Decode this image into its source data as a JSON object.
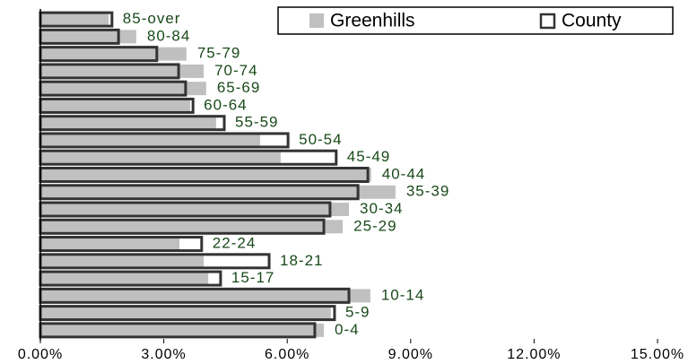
{
  "chart_data": {
    "type": "bar",
    "orientation": "horizontal",
    "categories": [
      "85-over",
      "80-84",
      "75-79",
      "70-74",
      "65-69",
      "60-64",
      "55-59",
      "50-54",
      "45-49",
      "40-44",
      "35-39",
      "30-34",
      "25-29",
      "22-24",
      "18-21",
      "15-17",
      "10-14",
      "5-9",
      "0-4"
    ],
    "series": [
      {
        "name": "Greenhills",
        "color": "#c0c0c0",
        "values": [
          1.66,
          2.33,
          3.55,
          3.97,
          4.03,
          3.64,
          4.27,
          5.34,
          5.84,
          8.04,
          8.63,
          7.5,
          7.35,
          3.38,
          3.97,
          4.08,
          8.02,
          7.06,
          6.89
        ]
      },
      {
        "name": "County",
        "color": "#333333",
        "values": [
          1.74,
          1.9,
          2.83,
          3.36,
          3.53,
          3.71,
          4.47,
          6.02,
          7.19,
          7.96,
          7.72,
          7.04,
          6.89,
          3.92,
          5.56,
          4.38,
          7.5,
          7.15,
          6.67
        ]
      }
    ],
    "xlim": [
      0,
      15
    ],
    "xticks": [
      {
        "value": 0,
        "label": "0.00%"
      },
      {
        "value": 3,
        "label": "3.00%"
      },
      {
        "value": 6,
        "label": "6.00%"
      },
      {
        "value": 9,
        "label": "9.00%"
      },
      {
        "value": 12,
        "label": "12.00%"
      },
      {
        "value": 15,
        "label": "15.00%"
      }
    ],
    "legend": "top-right"
  }
}
